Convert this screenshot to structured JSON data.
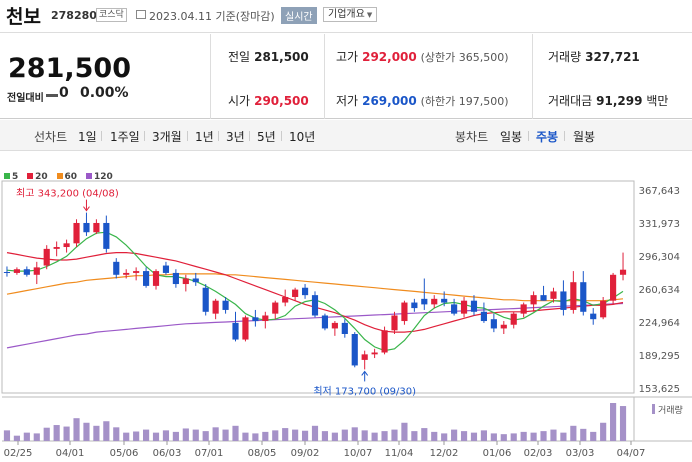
{
  "header": {
    "stock_name": "천보",
    "stock_code": "278280",
    "market": "코스닥",
    "date": "2023.04.11",
    "basis": "기준(장마감)",
    "realtime_btn": "실시간",
    "corp_overview_btn": "기업개요"
  },
  "summary": {
    "price": "281,500",
    "change_label": "전일대비",
    "change_value": "0",
    "change_pct": "0.00%",
    "prev_close_label": "전일",
    "prev_close": "281,500",
    "high_label": "고가",
    "high": "292,000",
    "upper_limit": "(상한가 365,500)",
    "volume_label": "거래량",
    "volume": "327,721",
    "open_label": "시가",
    "open": "290,500",
    "low_label": "저가",
    "low": "269,000",
    "lower_limit": "(하한가 197,500)",
    "amount_label": "거래대금",
    "amount": "91,299",
    "amount_unit": "백만"
  },
  "periods": {
    "line_label": "선차트",
    "line_items": [
      "1일",
      "1주일",
      "3개월",
      "1년",
      "3년",
      "5년",
      "10년"
    ],
    "candle_label": "봉차트",
    "candle_items": [
      "일봉",
      "주봉",
      "월봉"
    ],
    "candle_selected": "주봉"
  },
  "colors": {
    "up": "#e0203a",
    "down": "#1a56c8",
    "ma5": "#39b54a",
    "ma20": "#e0203a",
    "ma60": "#f08c1e",
    "ma120": "#9b59c8",
    "volume": "#a591c8"
  },
  "chart_data": {
    "type": "candlestick",
    "ma_legend": [
      {
        "name": "5",
        "color": "#39b54a"
      },
      {
        "name": "20",
        "color": "#e0203a"
      },
      {
        "name": "60",
        "color": "#f08c1e"
      },
      {
        "name": "120",
        "color": "#9b59c8"
      }
    ],
    "y_ticks": [
      367643,
      331973,
      296304,
      260634,
      224964,
      189295,
      153625
    ],
    "y_tick_labels": [
      "367,643",
      "331,973",
      "296,304",
      "260,634",
      "224,964",
      "189,295",
      "153,625"
    ],
    "ylim": [
      153625,
      367643
    ],
    "x_labels": [
      "02/25",
      "04/01",
      "05/06",
      "06/03",
      "07/01",
      "08/05",
      "09/02",
      "10/07",
      "11/04",
      "12/02",
      "01/06",
      "02/03",
      "03/03",
      "04/07"
    ],
    "high_annotation": "최고 343,200 (04/08)",
    "low_annotation": "최저 173,700 (09/30)",
    "volume_label": "거래량",
    "candles": [
      [
        279000,
        285000,
        274000,
        278000
      ],
      [
        278000,
        284000,
        276000,
        282000
      ],
      [
        282000,
        285000,
        274000,
        276000
      ],
      [
        276000,
        290000,
        266000,
        284000
      ],
      [
        286000,
        308000,
        282000,
        304000
      ],
      [
        304000,
        312000,
        296000,
        306000
      ],
      [
        306000,
        314000,
        300000,
        310000
      ],
      [
        310000,
        336000,
        306000,
        332000
      ],
      [
        332000,
        343200,
        318000,
        322000
      ],
      [
        322000,
        336000,
        320000,
        332000
      ],
      [
        332000,
        340000,
        300000,
        304000
      ],
      [
        290000,
        294000,
        272000,
        276000
      ],
      [
        276000,
        282000,
        272000,
        278000
      ],
      [
        278000,
        284000,
        270000,
        280000
      ],
      [
        280000,
        284000,
        262000,
        264000
      ],
      [
        264000,
        282000,
        260000,
        280000
      ],
      [
        286000,
        290000,
        276000,
        278000
      ],
      [
        278000,
        282000,
        262000,
        266000
      ],
      [
        266000,
        276000,
        258000,
        272000
      ],
      [
        272000,
        278000,
        264000,
        268000
      ],
      [
        262000,
        266000,
        232000,
        236000
      ],
      [
        234000,
        250000,
        228000,
        248000
      ],
      [
        248000,
        252000,
        234000,
        238000
      ],
      [
        224000,
        236000,
        204000,
        206000
      ],
      [
        206000,
        232000,
        204000,
        230000
      ],
      [
        230000,
        238000,
        220000,
        226000
      ],
      [
        226000,
        236000,
        218000,
        232000
      ],
      [
        234000,
        248000,
        228000,
        246000
      ],
      [
        246000,
        260000,
        242000,
        252000
      ],
      [
        252000,
        262000,
        248000,
        260000
      ],
      [
        262000,
        266000,
        250000,
        254000
      ],
      [
        254000,
        258000,
        230000,
        232000
      ],
      [
        232000,
        234000,
        216000,
        218000
      ],
      [
        218000,
        226000,
        210000,
        224000
      ],
      [
        224000,
        228000,
        208000,
        212000
      ],
      [
        212000,
        214000,
        176000,
        178000
      ],
      [
        184000,
        194000,
        173700,
        190000
      ],
      [
        190000,
        196000,
        186000,
        192000
      ],
      [
        192000,
        220000,
        190000,
        216000
      ],
      [
        216000,
        236000,
        212000,
        232000
      ],
      [
        226000,
        248000,
        222000,
        246000
      ],
      [
        246000,
        250000,
        236000,
        240000
      ],
      [
        250000,
        272000,
        238000,
        244000
      ],
      [
        244000,
        254000,
        240000,
        250000
      ],
      [
        250000,
        258000,
        242000,
        246000
      ],
      [
        244000,
        250000,
        232000,
        234000
      ],
      [
        234000,
        252000,
        230000,
        248000
      ],
      [
        248000,
        254000,
        232000,
        236000
      ],
      [
        236000,
        246000,
        224000,
        226000
      ],
      [
        228000,
        234000,
        214000,
        218000
      ],
      [
        218000,
        226000,
        212000,
        222000
      ],
      [
        222000,
        236000,
        218000,
        234000
      ],
      [
        234000,
        246000,
        230000,
        244000
      ],
      [
        244000,
        258000,
        236000,
        254000
      ],
      [
        254000,
        264000,
        248000,
        248000
      ],
      [
        250000,
        262000,
        246000,
        258000
      ],
      [
        258000,
        270000,
        232000,
        238000
      ],
      [
        238000,
        280000,
        234000,
        268000
      ],
      [
        268000,
        280000,
        232000,
        236000
      ],
      [
        234000,
        240000,
        222000,
        228000
      ],
      [
        230000,
        252000,
        228000,
        248000
      ],
      [
        248000,
        278000,
        244000,
        276000
      ],
      [
        276000,
        300000,
        270000,
        281500
      ]
    ],
    "volumes": [
      28,
      14,
      22,
      20,
      35,
      42,
      38,
      60,
      48,
      40,
      52,
      36,
      22,
      25,
      30,
      22,
      28,
      24,
      33,
      30,
      26,
      36,
      30,
      40,
      22,
      20,
      24,
      28,
      34,
      30,
      27,
      40,
      26,
      22,
      30,
      36,
      28,
      22,
      26,
      30,
      48,
      26,
      34,
      24,
      20,
      30,
      26,
      22,
      28,
      20,
      18,
      20,
      24,
      22,
      26,
      30,
      22,
      40,
      32,
      24,
      48,
      100,
      92
    ],
    "ma5": [
      281000,
      280000,
      280000,
      281000,
      285000,
      290000,
      296000,
      306000,
      315000,
      321000,
      322000,
      317000,
      308000,
      297000,
      285000,
      276000,
      274000,
      274000,
      272000,
      269000,
      264000,
      258000,
      251000,
      244000,
      234000,
      229000,
      227000,
      228000,
      232000,
      242000,
      247000,
      249000,
      245000,
      238000,
      229000,
      218000,
      206000,
      198000,
      194000,
      196000,
      205000,
      218000,
      232000,
      240000,
      245000,
      246000,
      244000,
      241000,
      240000,
      235000,
      230000,
      227000,
      229000,
      235000,
      242000,
      248000,
      247000,
      250000,
      248000,
      243000,
      245000,
      251000,
      258000
    ],
    "ma20": [
      300000,
      298000,
      296000,
      294000,
      293000,
      292000,
      292000,
      293000,
      295000,
      297000,
      299000,
      300000,
      300000,
      299000,
      297000,
      295000,
      293000,
      291000,
      288000,
      285000,
      282000,
      279000,
      276000,
      272000,
      268000,
      264000,
      260000,
      256000,
      252000,
      248000,
      244000,
      241000,
      238000,
      235000,
      231000,
      227000,
      222000,
      218000,
      215000,
      214000,
      214000,
      215000,
      217000,
      220000,
      223000,
      226000,
      229000,
      232000,
      234000,
      235000,
      236000,
      236000,
      236000,
      237000,
      238000,
      239000,
      240000,
      241000,
      242000,
      243000,
      243000,
      244000,
      246000
    ],
    "ma60": [
      255000,
      257000,
      259000,
      261000,
      263000,
      265000,
      267000,
      268000,
      270000,
      271000,
      272000,
      273000,
      274000,
      275000,
      275000,
      276000,
      276000,
      277000,
      277000,
      277000,
      277000,
      277000,
      276000,
      276000,
      275000,
      274000,
      273000,
      272000,
      271000,
      270000,
      269000,
      268000,
      267000,
      266000,
      265000,
      264000,
      263000,
      262000,
      261000,
      260000,
      259000,
      258000,
      257000,
      256000,
      255000,
      254000,
      253000,
      252000,
      251000,
      250000,
      249000,
      249000,
      248000,
      248000,
      248000,
      248000,
      248000,
      248000,
      248000,
      248000,
      248000,
      249000,
      250000
    ],
    "ma120": [
      197000,
      199000,
      201000,
      203000,
      205000,
      207000,
      209000,
      211000,
      212000,
      214000,
      215000,
      216000,
      217000,
      218000,
      219000,
      220000,
      221000,
      222000,
      223000,
      223500,
      224000,
      224500,
      225000,
      225500,
      226000,
      226500,
      227000,
      227500,
      228000,
      228500,
      229000,
      229500,
      230000,
      230500,
      231000,
      231500,
      232000,
      232500,
      233000,
      233500,
      234000,
      234500,
      235000,
      235500,
      236000,
      236500,
      237000,
      237500,
      238000,
      238500,
      239000,
      239500,
      240000,
      240500,
      241000,
      241500,
      242000,
      242500,
      243000,
      243500,
      244000,
      244500,
      245000
    ]
  }
}
